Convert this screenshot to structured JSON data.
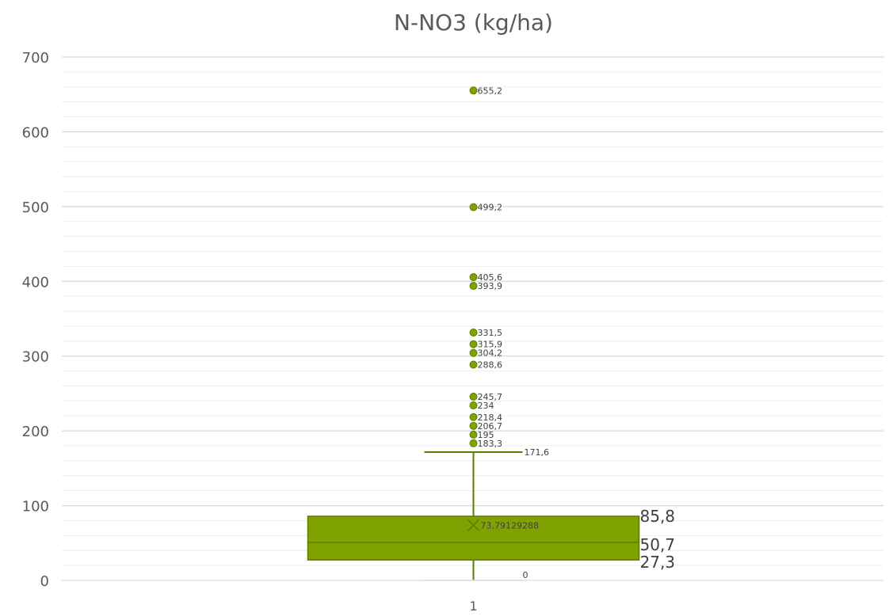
{
  "chart_data": {
    "type": "box",
    "title": "N-NO3 (kg/ha)",
    "xlabel": "",
    "ylabel": "",
    "categories": [
      "1"
    ],
    "ylim": [
      0,
      700
    ],
    "yticks": [
      0,
      100,
      200,
      300,
      400,
      500,
      600,
      700
    ],
    "ytick_labels": [
      "0",
      "100",
      "200",
      "300",
      "400",
      "500",
      "600",
      "700"
    ],
    "grid": true,
    "minor_grid_step": 20,
    "legend": "none",
    "box": {
      "min": 0,
      "q1": 27.3,
      "median": 50.7,
      "q3": 85.8,
      "whisker_max": 171.6,
      "mean": 73.79129288
    },
    "outliers": [
      183.3,
      195,
      206.7,
      218.4,
      234,
      245.7,
      288.6,
      304.2,
      315.9,
      331.5,
      393.9,
      405.6,
      499.2,
      655.2
    ],
    "labels": {
      "min": "0",
      "q1": "27,3",
      "median": "50,7",
      "q3": "85,8",
      "whisker_max": "171,6",
      "mean": "73,79129288",
      "outliers": [
        "183,3",
        "195",
        "206,7",
        "218,4",
        "234",
        "245,7",
        "288,6",
        "304,2",
        "315,9",
        "331,5",
        "393,9",
        "405,6",
        "499,2",
        "655,2"
      ]
    },
    "colors": {
      "box_fill": "#7fa200",
      "box_stroke": "#5e7d00",
      "point_fill": "#7fa200",
      "axis_text": "#595959",
      "grid": "#d9d9d9",
      "minor_grid": "#eeeeee"
    }
  }
}
